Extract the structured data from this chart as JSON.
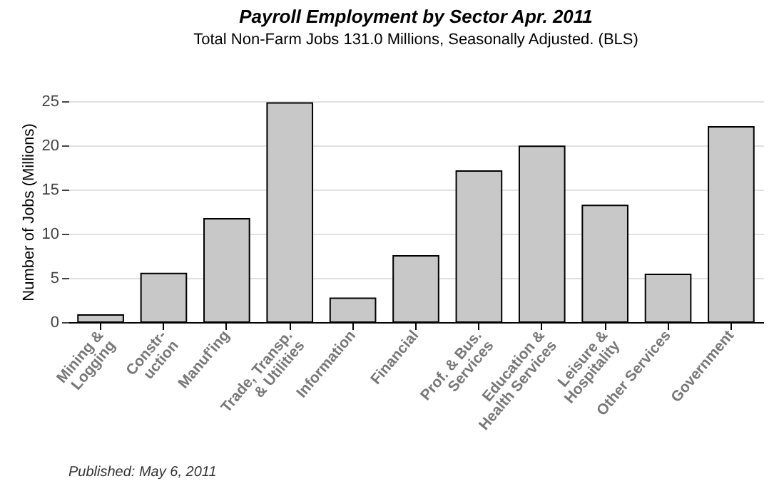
{
  "chart_data": {
    "type": "bar",
    "title": "Payroll Employment by Sector  Apr. 2011",
    "subtitle": "Total Non-Farm Jobs 131.0 Millions, Seasonally Adjusted.  (BLS)",
    "ylabel": "Number of Jobs (Millions)",
    "categories": [
      "Mining &\nLogging",
      "Constr-\nuction",
      "Manuf'ing",
      "Trade, Transp.\n& Utilities",
      "Information",
      "Financial",
      "Prof. & Bus.\nServices",
      "Education &\nHealth Services",
      "Leisure &\nHospitality",
      "Other Services",
      "Government"
    ],
    "values": [
      0.8,
      5.5,
      11.7,
      24.8,
      2.7,
      7.5,
      17.1,
      19.9,
      13.2,
      5.4,
      22.1
    ],
    "color": "#c8c8c8",
    "ylim": [
      0,
      25
    ],
    "yticks": [
      0,
      5,
      10,
      15,
      20,
      25
    ],
    "grid": "y",
    "annotations": [
      "Published: May 6, 2011"
    ]
  }
}
